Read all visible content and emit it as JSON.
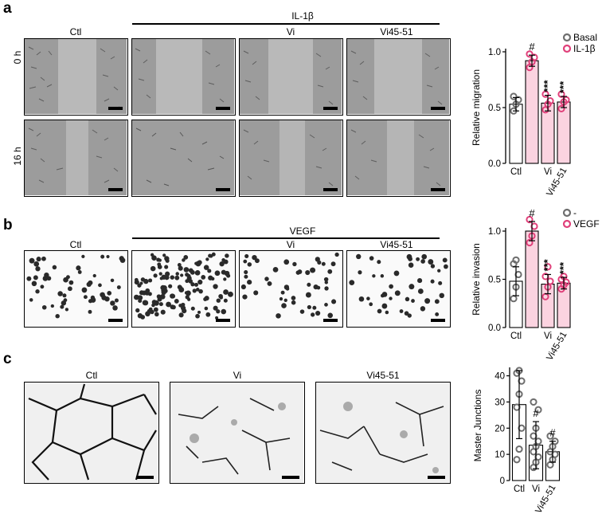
{
  "panel_a": {
    "letter": "a",
    "group_label": "IL-1β",
    "columns": [
      "Ctl",
      "Vi",
      "Vi45-51"
    ],
    "rows": [
      "0 h",
      "16 h"
    ]
  },
  "panel_b": {
    "letter": "b",
    "group_label": "VEGF",
    "columns": [
      "Ctl",
      "Vi",
      "Vi45-51"
    ]
  },
  "panel_c": {
    "letter": "c",
    "columns": [
      "Ctl",
      "Vi",
      "Vi45-51"
    ]
  },
  "chart_data": [
    {
      "id": "migration",
      "type": "bar",
      "ylabel": "Relative migration",
      "ylim": [
        0,
        1.0
      ],
      "yticks": [
        "0.0",
        "0.5",
        "1.0"
      ],
      "categories": [
        "Ctl",
        "",
        "Vi",
        "Vi45-51"
      ],
      "legend": [
        "Basal",
        "IL-1β"
      ],
      "legend_placement": "top-right",
      "values": [
        0.53,
        0.92,
        0.54,
        0.55
      ],
      "errors": [
        0.06,
        0.05,
        0.07,
        0.05
      ],
      "significance": [
        "",
        "#",
        "***",
        "***"
      ],
      "points": [
        [
          0.47,
          0.53,
          0.57,
          0.6
        ],
        [
          0.86,
          0.91,
          0.95,
          0.98
        ],
        [
          0.48,
          0.53,
          0.56,
          0.62
        ],
        [
          0.49,
          0.55,
          0.57,
          0.62
        ]
      ]
    },
    {
      "id": "invasion",
      "type": "bar",
      "ylabel": "Relative invasion",
      "ylim": [
        0,
        1.0
      ],
      "yticks": [
        "0.0",
        "0.5",
        "1.0"
      ],
      "categories": [
        "Ctl",
        "",
        "Vi",
        "Vi45-51"
      ],
      "legend": [
        "-",
        "VEGF"
      ],
      "legend_placement": "top-right",
      "values": [
        0.48,
        1.0,
        0.45,
        0.46
      ],
      "errors": [
        0.15,
        0.1,
        0.1,
        0.06
      ],
      "significance": [
        "",
        "#",
        "***",
        "***"
      ],
      "points": [
        [
          0.3,
          0.42,
          0.55,
          0.66,
          0.7
        ],
        [
          0.88,
          0.95,
          1.05,
          1.12
        ],
        [
          0.32,
          0.42,
          0.48,
          0.53,
          0.63
        ],
        [
          0.4,
          0.44,
          0.47,
          0.5,
          0.53
        ]
      ]
    },
    {
      "id": "junctions",
      "type": "bar",
      "ylabel": "Master Junctions",
      "ylim": [
        0,
        42
      ],
      "yticks": [
        "0",
        "10",
        "20",
        "30",
        "40"
      ],
      "categories": [
        "Ctl",
        "Vi",
        "Vi45-51"
      ],
      "values": [
        29,
        13.5,
        11
      ],
      "errors": [
        13,
        9,
        4
      ],
      "significance": [
        "",
        "#",
        "#"
      ],
      "points": [
        [
          8,
          12,
          20,
          28,
          33,
          38,
          41,
          42
        ],
        [
          5,
          7,
          9,
          11,
          13,
          15,
          17,
          20,
          27,
          30
        ],
        [
          6,
          8,
          10,
          11,
          13,
          15,
          17
        ]
      ]
    }
  ],
  "colors": {
    "basal_marker": "#6e6e6e",
    "treated_marker": "#e0407a",
    "treated_fill": "#fbd3e0"
  }
}
